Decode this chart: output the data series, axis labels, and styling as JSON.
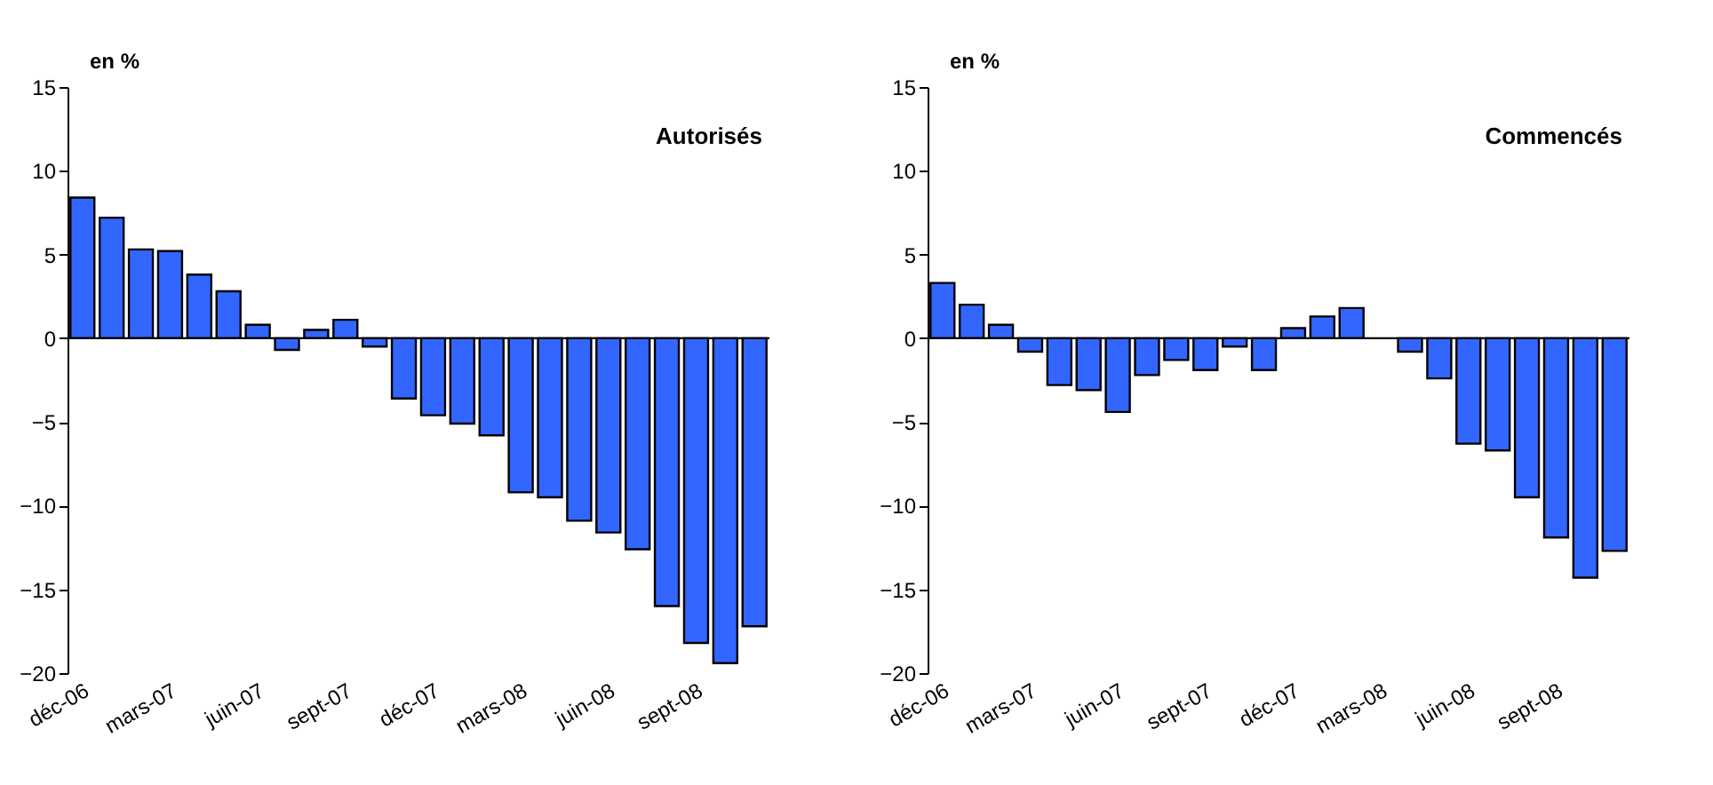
{
  "chart_data": [
    {
      "type": "bar",
      "title": "Autorisés",
      "ylabel": "en %",
      "categories": [
        "déc-06",
        null,
        null,
        "mars-07",
        null,
        null,
        "juin-07",
        null,
        null,
        "sept-07",
        null,
        null,
        "déc-07",
        null,
        null,
        "mars-08",
        null,
        null,
        "juin-08",
        null,
        null,
        "sept-08",
        null,
        null
      ],
      "values": [
        8.4,
        7.2,
        5.3,
        5.2,
        3.8,
        2.8,
        0.8,
        -0.7,
        0.5,
        1.1,
        -0.5,
        -3.6,
        -4.6,
        -5.1,
        -5.8,
        -9.2,
        -9.5,
        -10.9,
        -11.6,
        -12.6,
        -16.0,
        -18.2,
        -19.4,
        -17.2
      ],
      "color": "#3366ff",
      "ylim": [
        -20,
        15
      ],
      "yticks": [
        -20,
        -15,
        -10,
        -5,
        0,
        5,
        10,
        15
      ]
    },
    {
      "type": "bar",
      "title": "Commencés",
      "ylabel": "en %",
      "categories": [
        "déc-06",
        null,
        null,
        "mars-07",
        null,
        null,
        "juin-07",
        null,
        null,
        "sept-07",
        null,
        null,
        "déc-07",
        null,
        null,
        "mars-08",
        null,
        null,
        "juin-08",
        null,
        null,
        "sept-08",
        null,
        null
      ],
      "values": [
        3.3,
        2.0,
        0.8,
        -0.8,
        -2.8,
        -3.1,
        -4.4,
        -2.2,
        -1.3,
        -1.9,
        -0.5,
        -1.9,
        0.6,
        1.3,
        1.8,
        null,
        -0.8,
        -2.4,
        -6.3,
        -6.7,
        -9.5,
        -11.9,
        -14.3,
        -12.7
      ],
      "color": "#3366ff",
      "ylim": [
        -20,
        15
      ],
      "yticks": [
        -20,
        -15,
        -10,
        -5,
        0,
        5,
        10,
        15
      ]
    }
  ]
}
